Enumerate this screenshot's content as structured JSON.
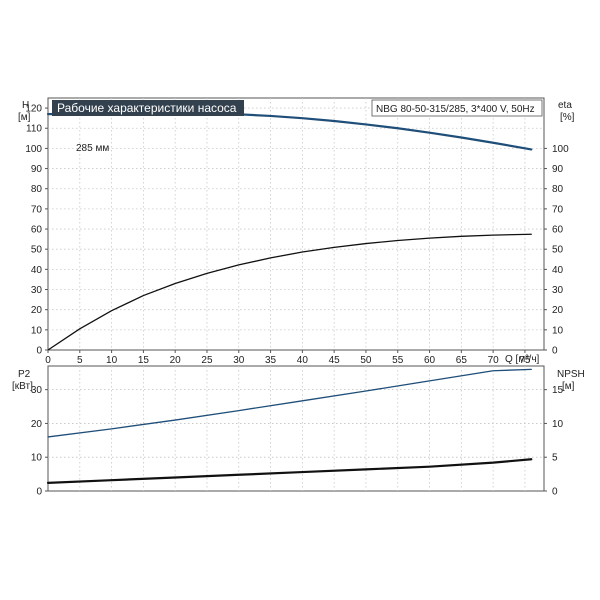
{
  "title": "Рабочие характеристики насоса",
  "model": "NBG 80-50-315/285, 3*400 V, 50Hz",
  "colors": {
    "head": "#1f4e79",
    "p2": "#1f4e79",
    "eta": "#111111",
    "npsh": "#111111",
    "title_bg": "#33414f"
  },
  "chart_data": [
    {
      "type": "line",
      "xlabel": "Q [м³/ч]",
      "xlim": [
        0,
        78
      ],
      "x_ticks": [
        0,
        5,
        10,
        15,
        20,
        25,
        30,
        35,
        40,
        45,
        50,
        55,
        60,
        65,
        70,
        75
      ],
      "left_axis": {
        "label_line1": "H",
        "label_line2": "[м]",
        "ylim": [
          0,
          125
        ],
        "ticks": [
          0,
          10,
          20,
          30,
          40,
          50,
          60,
          70,
          80,
          90,
          100,
          110,
          120
        ]
      },
      "right_axis": {
        "label_line1": "eta",
        "label_line2": "[%]",
        "ylim": [
          0,
          125
        ],
        "ticks": [
          0,
          10,
          20,
          30,
          40,
          50,
          60,
          70,
          80,
          90,
          100
        ]
      },
      "grid": true,
      "series": [
        {
          "name": "285 мм",
          "axis": "left",
          "x": [
            0,
            5,
            10,
            15,
            20,
            25,
            30,
            35,
            40,
            45,
            50,
            55,
            60,
            65,
            70,
            76
          ],
          "y": [
            117,
            117.3,
            117.6,
            117.8,
            117.7,
            117.4,
            116.9,
            116.1,
            115.0,
            113.6,
            111.9,
            110.0,
            107.8,
            105.4,
            102.8,
            99.5
          ]
        },
        {
          "name": "",
          "axis": "right",
          "x": [
            0,
            5,
            10,
            15,
            20,
            25,
            30,
            35,
            40,
            45,
            50,
            55,
            60,
            65,
            70,
            76
          ],
          "y": [
            0,
            10.5,
            19.5,
            27,
            33,
            38,
            42.2,
            45.7,
            48.6,
            50.9,
            52.8,
            54.3,
            55.5,
            56.4,
            57.0,
            57.4
          ]
        }
      ]
    },
    {
      "type": "line",
      "xlim": [
        0,
        78
      ],
      "x_ticks": [
        0,
        5,
        10,
        15,
        20,
        25,
        30,
        35,
        40,
        45,
        50,
        55,
        60,
        65,
        70,
        75
      ],
      "left_axis": {
        "label_line1": "P2",
        "label_line2": "[кВт]",
        "ylim": [
          0,
          37
        ],
        "ticks": [
          0,
          10,
          20,
          30
        ]
      },
      "right_axis": {
        "label_line1": "NPSH",
        "label_line2": "[м]",
        "ylim": [
          0,
          18.5
        ],
        "ticks": [
          0,
          5,
          10,
          15
        ]
      },
      "grid": true,
      "series": [
        {
          "name": "",
          "axis": "left",
          "x": [
            0,
            10,
            20,
            30,
            40,
            50,
            60,
            70,
            76
          ],
          "y": [
            16,
            18.4,
            21.0,
            23.8,
            26.7,
            29.6,
            32.6,
            35.6,
            36.0
          ]
        },
        {
          "name": "",
          "axis": "right",
          "x": [
            0,
            10,
            20,
            30,
            40,
            50,
            60,
            70,
            76
          ],
          "y": [
            1.2,
            1.6,
            2.0,
            2.4,
            2.8,
            3.2,
            3.6,
            4.2,
            4.7
          ]
        }
      ]
    }
  ]
}
